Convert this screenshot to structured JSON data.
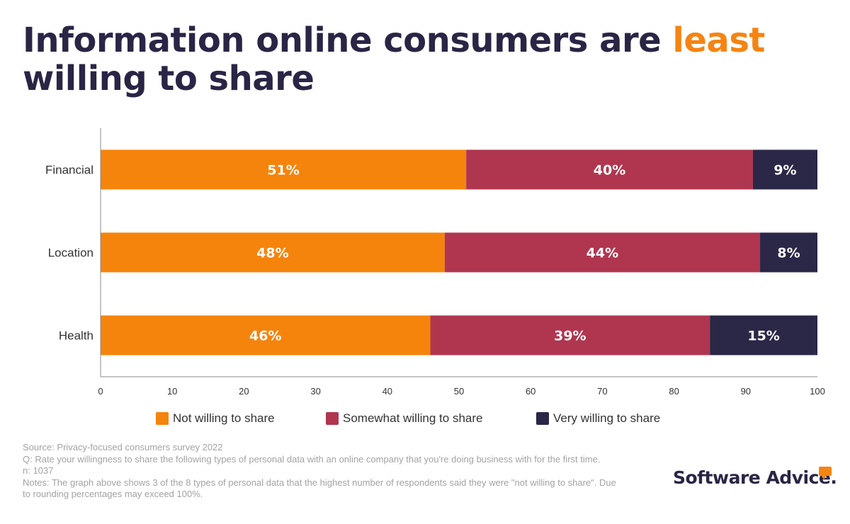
{
  "title": {
    "prefix": "Information online consumers are ",
    "highlight": "least",
    "suffix": " willing to share"
  },
  "chart_data": {
    "type": "bar",
    "orientation": "horizontal",
    "stacked": true,
    "categories": [
      "Financial",
      "Location",
      "Health"
    ],
    "series": [
      {
        "name": "Not willing to share",
        "values": [
          51,
          48,
          46
        ],
        "labels": [
          "51%",
          "48%",
          "46%"
        ],
        "color": "#f5840c"
      },
      {
        "name": "Somewhat willing to share",
        "values": [
          40,
          44,
          39
        ],
        "labels": [
          "40%",
          "44%",
          "39%"
        ],
        "color": "#b03650"
      },
      {
        "name": "Very willing to share",
        "values": [
          9,
          8,
          15
        ],
        "labels": [
          "9%",
          "8%",
          "15%"
        ],
        "color": "#2b2747"
      }
    ],
    "xlim": [
      0,
      100
    ],
    "xticks": [
      "0",
      "10",
      "20",
      "30",
      "40",
      "50",
      "60",
      "70",
      "80",
      "90",
      "100"
    ],
    "grid": false,
    "legend_position": "bottom"
  },
  "footnotes": [
    "Source: Privacy-focused consumers survey 2022",
    "Q: Rate your willingness to share the following types of personal data with an online company that you're doing business with for the first time.",
    "n: 1037",
    "Notes: The graph above shows 3 of the 8 types of personal data that the highest number of respondents said they were \"not willing to share\".  Due to rounding percentages may exceed 100%."
  ],
  "logo": {
    "text": "Software Advice.",
    "accent_color": "#f58412"
  }
}
